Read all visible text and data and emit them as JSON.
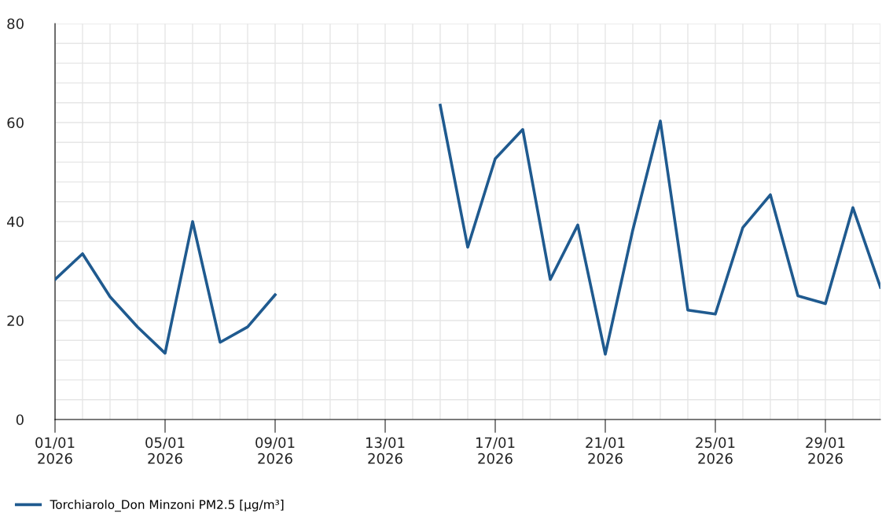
{
  "chart_data": {
    "type": "line",
    "x": [
      "2026-01-01",
      "2026-01-02",
      "2026-01-03",
      "2026-01-04",
      "2026-01-05",
      "2026-01-06",
      "2026-01-07",
      "2026-01-08",
      "2026-01-09",
      "2026-01-10",
      "2026-01-11",
      "2026-01-12",
      "2026-01-13",
      "2026-01-14",
      "2026-01-15",
      "2026-01-16",
      "2026-01-17",
      "2026-01-18",
      "2026-01-19",
      "2026-01-20",
      "2026-01-21",
      "2026-01-22",
      "2026-01-23",
      "2026-01-24",
      "2026-01-25",
      "2026-01-26",
      "2026-01-27",
      "2026-01-28",
      "2026-01-29",
      "2026-01-30",
      "2026-01-31"
    ],
    "series": [
      {
        "name": "Torchiarolo_Don Minzoni PM2.5 [µg/m³]",
        "color": "#1f5a8f",
        "values": [
          28.3,
          33.5,
          24.8,
          18.7,
          13.4,
          40.0,
          15.6,
          18.7,
          25.2,
          null,
          null,
          null,
          null,
          null,
          63.5,
          34.8,
          52.7,
          58.6,
          28.3,
          39.3,
          13.2,
          38.3,
          60.3,
          22.1,
          21.3,
          38.8,
          45.4,
          25.0,
          23.4,
          42.8,
          26.7
        ]
      }
    ],
    "xlim": [
      "2026-01-01",
      "2026-01-31"
    ],
    "xticks": [
      {
        "value": "2026-01-01",
        "label": "01/01\n2026"
      },
      {
        "value": "2026-01-05",
        "label": "05/01\n2026"
      },
      {
        "value": "2026-01-09",
        "label": "09/01\n2026"
      },
      {
        "value": "2026-01-13",
        "label": "13/01\n2026"
      },
      {
        "value": "2026-01-17",
        "label": "17/01\n2026"
      },
      {
        "value": "2026-01-21",
        "label": "21/01\n2026"
      },
      {
        "value": "2026-01-25",
        "label": "25/01\n2026"
      },
      {
        "value": "2026-01-29",
        "label": "29/01\n2026"
      }
    ],
    "ylim": [
      0,
      80
    ],
    "yticks": [
      0,
      20,
      40,
      60,
      80
    ],
    "grid": true,
    "legend": "bottom left",
    "marker": "none",
    "line_style": "solid"
  }
}
